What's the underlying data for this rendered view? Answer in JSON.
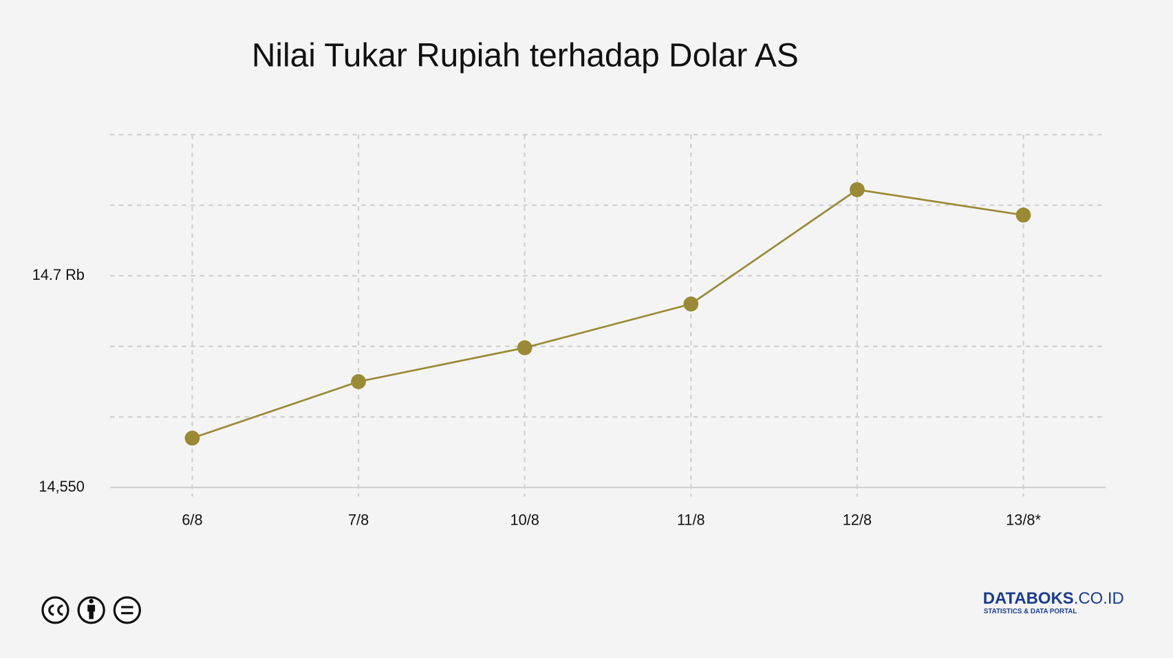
{
  "chart_data": {
    "type": "line",
    "title": "Nilai Tukar Rupiah terhadap Dolar AS",
    "categories": [
      "6/8",
      "7/8",
      "10/8",
      "11/8",
      "12/8",
      "13/8*"
    ],
    "series": [
      {
        "name": "Nilai Tukar",
        "color": "#9a8a35",
        "values": [
          14585,
          14625,
          14649,
          14680,
          14761,
          14743
        ]
      }
    ],
    "ylim": [
      14550,
      14800
    ],
    "yticks": [
      {
        "value": 14550,
        "label": "14,550"
      },
      {
        "value": 14600,
        "label": null
      },
      {
        "value": 14650,
        "label": null
      },
      {
        "value": 14700,
        "label": "14.7 Rb"
      },
      {
        "value": 14750,
        "label": null
      },
      {
        "value": 14800,
        "label": null
      }
    ],
    "grid": true
  },
  "footer": {
    "brand": "DATABOKS",
    "brand_suffix": ".CO.ID",
    "tagline": "STATISTICS & DATA PORTAL"
  }
}
